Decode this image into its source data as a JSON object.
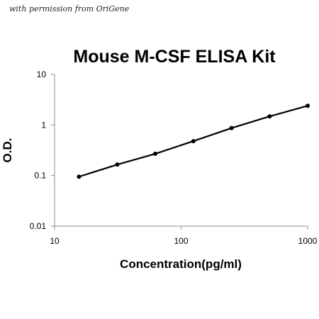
{
  "permission_note": "with permission from OriGene",
  "chart_data": {
    "type": "line",
    "title": "Mouse M-CSF ELISA Kit",
    "xlabel": "Concentration(pg/ml)",
    "ylabel": "O.D.",
    "xscale": "log",
    "yscale": "log",
    "xlim": [
      10,
      1000
    ],
    "ylim": [
      0.01,
      10
    ],
    "grid": false,
    "x_ticks": [
      {
        "value": 10,
        "label": "10"
      },
      {
        "value": 100,
        "label": "100"
      },
      {
        "value": 1000,
        "label": "1000"
      }
    ],
    "y_ticks": [
      {
        "value": 0.01,
        "label": "0.01"
      },
      {
        "value": 0.1,
        "label": "0.1"
      },
      {
        "value": 1,
        "label": "1"
      },
      {
        "value": 10,
        "label": "10"
      }
    ],
    "series": [
      {
        "color": "#000000",
        "x": [
          15.6,
          31.3,
          62.5,
          125,
          250,
          500,
          1000
        ],
        "y": [
          0.095,
          0.165,
          0.27,
          0.48,
          0.87,
          1.48,
          2.4
        ]
      }
    ]
  }
}
